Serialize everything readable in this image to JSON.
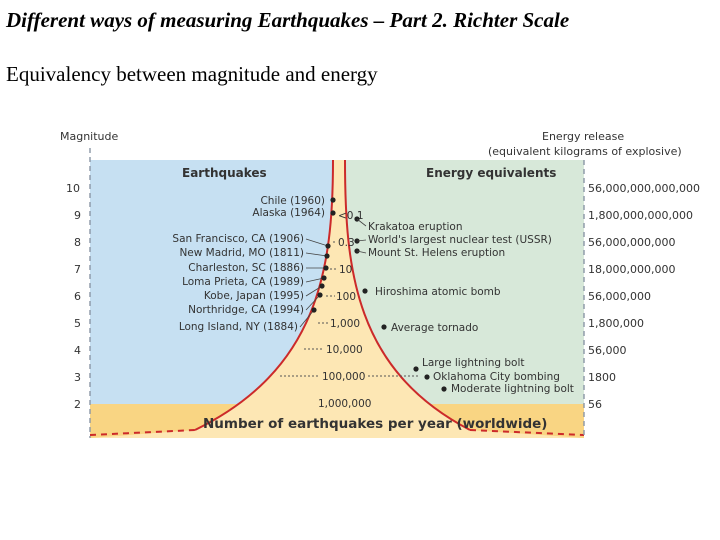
{
  "slide": {
    "title": "Different ways of measuring Earthquakes – Part 2. Richter Scale",
    "subtitle": "Equivalency between magnitude and energy"
  },
  "diagram": {
    "magnitude_header": "Magnitude",
    "energy_header_1": "Energy release",
    "energy_header_2": "(equivalent kilograms of explosive)",
    "earthquakes_header": "Earthquakes",
    "energy_equivalents_header": "Energy equivalents",
    "footer": "Number of earthquakes per year (worldwide)",
    "colors": {
      "left_panel": "#c6e0f2",
      "right_panel": "#d7e8d9",
      "funnel_fill": "#fde7b4",
      "funnel_edge": "#cc2a2a",
      "bottom_band": "#f9d583"
    },
    "magnitudes": [
      {
        "label": "10",
        "energy": "56,000,000,000,000"
      },
      {
        "label": "9",
        "energy": "1,800,000,000,000"
      },
      {
        "label": "8",
        "energy": "56,000,000,000"
      },
      {
        "label": "7",
        "energy": "18,000,000,000"
      },
      {
        "label": "6",
        "energy": "56,000,000"
      },
      {
        "label": "5",
        "energy": "1,800,000"
      },
      {
        "label": "4",
        "energy": "56,000"
      },
      {
        "label": "3",
        "energy": "1800"
      },
      {
        "label": "2",
        "energy": "56"
      }
    ],
    "frequencies": [
      "<0.1",
      "0.3",
      "10",
      "100",
      "1,000",
      "10,000",
      "100,000",
      "1,000,000"
    ],
    "earthquakes": [
      {
        "label": "Chile (1960)"
      },
      {
        "label": "Alaska (1964)"
      },
      {
        "label": "San Francisco, CA (1906)"
      },
      {
        "label": "New Madrid, MO (1811)"
      },
      {
        "label": "Charleston, SC (1886)"
      },
      {
        "label": "Loma Prieta, CA (1989)"
      },
      {
        "label": "Kobe, Japan (1995)"
      },
      {
        "label": "Northridge, CA (1994)"
      },
      {
        "label": "Long Island, NY (1884)"
      }
    ],
    "equivalents": [
      {
        "label": "Krakatoa eruption"
      },
      {
        "label": "World's largest nuclear test (USSR)"
      },
      {
        "label": "Mount St. Helens eruption"
      },
      {
        "label": "Hiroshima atomic bomb"
      },
      {
        "label": "Average tornado"
      },
      {
        "label": "Large lightning bolt"
      },
      {
        "label": "Oklahoma City bombing"
      },
      {
        "label": "Moderate lightning bolt"
      }
    ]
  }
}
